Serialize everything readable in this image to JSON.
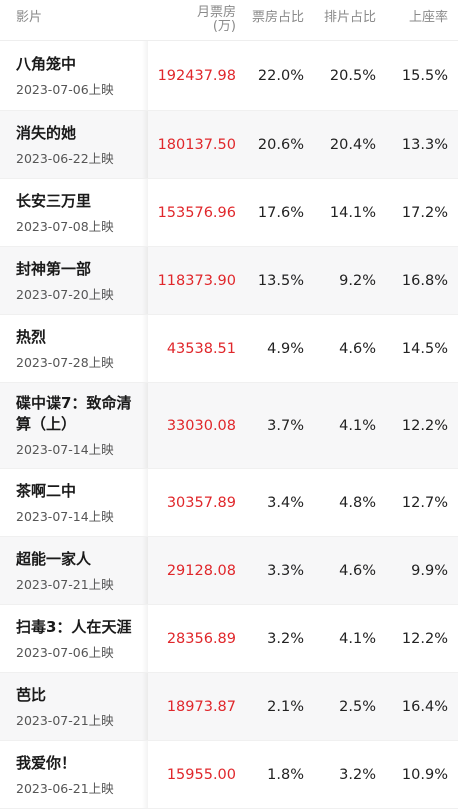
{
  "header": {
    "film": "影片",
    "box_line1": "月票房",
    "box_line2": "(万)",
    "share": "票房占比",
    "schedule": "排片占比",
    "seat": "上座率"
  },
  "accent_color": "#e0272b",
  "rows": [
    {
      "name": "八角笼中",
      "date": "2023-07-06上映",
      "box": "192437.98",
      "share": "22.0%",
      "schedule": "20.5%",
      "seat": "15.5%"
    },
    {
      "name": "消失的她",
      "date": "2023-06-22上映",
      "box": "180137.50",
      "share": "20.6%",
      "schedule": "20.4%",
      "seat": "13.3%"
    },
    {
      "name": "长安三万里",
      "date": "2023-07-08上映",
      "box": "153576.96",
      "share": "17.6%",
      "schedule": "14.1%",
      "seat": "17.2%"
    },
    {
      "name": "封神第一部",
      "date": "2023-07-20上映",
      "box": "118373.90",
      "share": "13.5%",
      "schedule": "9.2%",
      "seat": "16.8%"
    },
    {
      "name": "热烈",
      "date": "2023-07-28上映",
      "box": "43538.51",
      "share": "4.9%",
      "schedule": "4.6%",
      "seat": "14.5%"
    },
    {
      "name": "碟中谍7：致命清算（上）",
      "date": "2023-07-14上映",
      "box": "33030.08",
      "share": "3.7%",
      "schedule": "4.1%",
      "seat": "12.2%"
    },
    {
      "name": "茶啊二中",
      "date": "2023-07-14上映",
      "box": "30357.89",
      "share": "3.4%",
      "schedule": "4.8%",
      "seat": "12.7%"
    },
    {
      "name": "超能一家人",
      "date": "2023-07-21上映",
      "box": "29128.08",
      "share": "3.3%",
      "schedule": "4.6%",
      "seat": "9.9%"
    },
    {
      "name": "扫毒3：人在天涯",
      "date": "2023-07-06上映",
      "box": "28356.89",
      "share": "3.2%",
      "schedule": "4.1%",
      "seat": "12.2%"
    },
    {
      "name": "芭比",
      "date": "2023-07-21上映",
      "box": "18973.87",
      "share": "2.1%",
      "schedule": "2.5%",
      "seat": "16.4%"
    },
    {
      "name": "我爱你！",
      "date": "2023-06-21上映",
      "box": "15955.00",
      "share": "1.8%",
      "schedule": "3.2%",
      "seat": "10.9%"
    }
  ]
}
